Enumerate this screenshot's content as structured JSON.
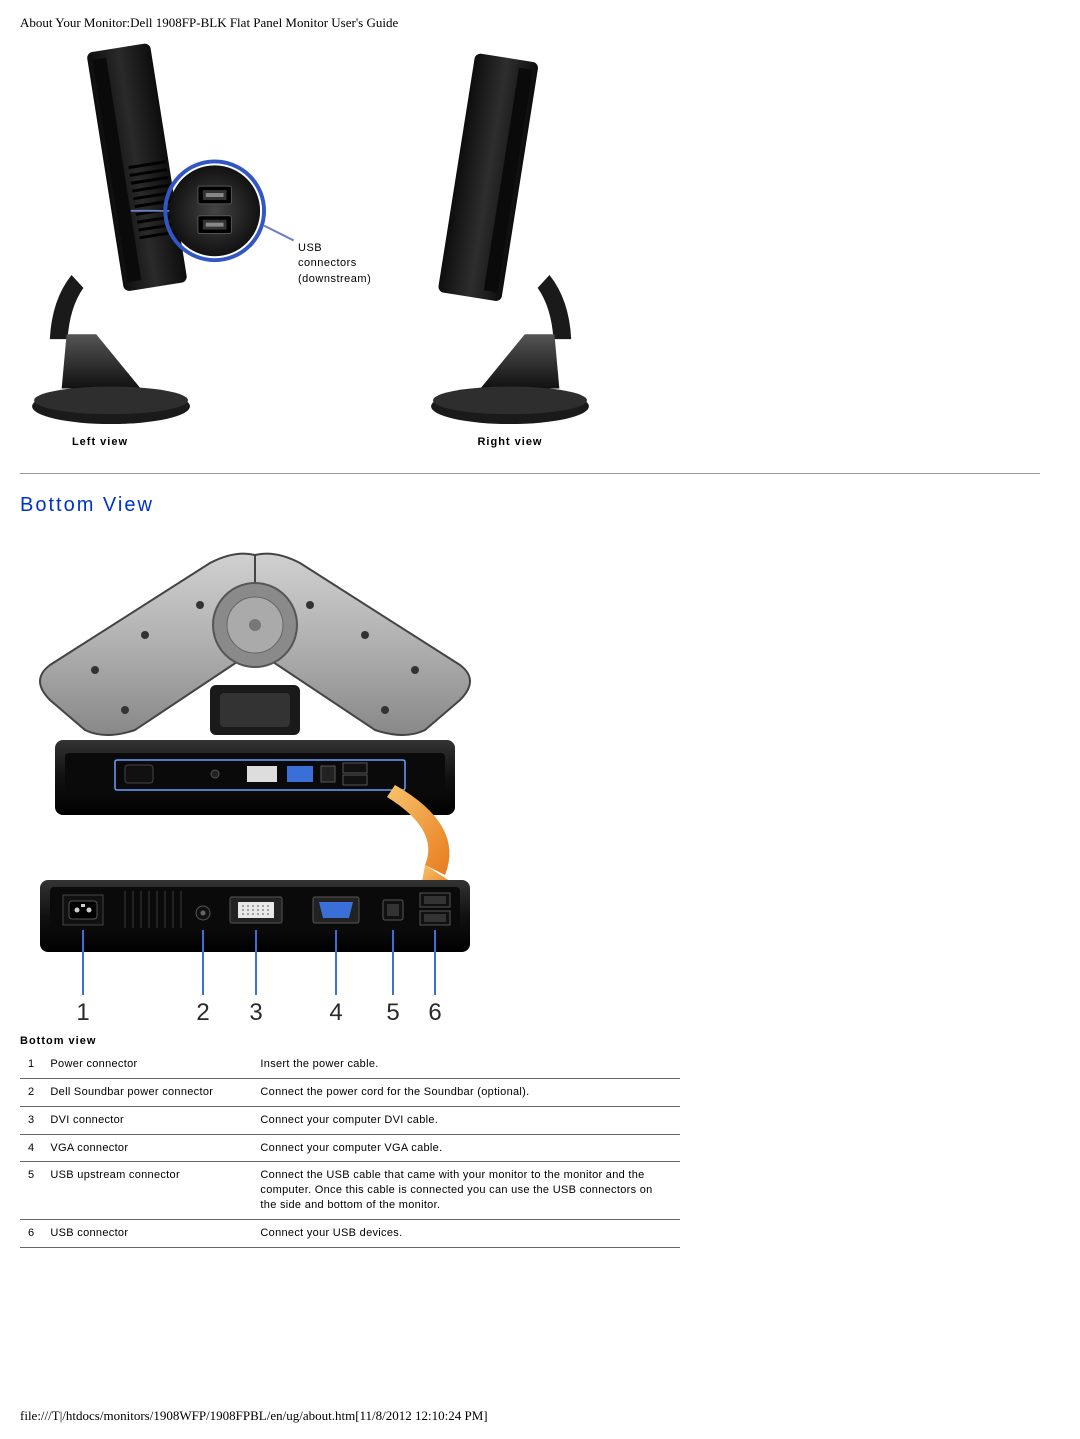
{
  "header": "About Your Monitor:Dell 1908FP-BLK Flat Panel Monitor User's Guide",
  "side_views": {
    "usb_label": "USB\nconnectors\n(downstream)",
    "left_caption": "Left view",
    "right_caption": "Right view"
  },
  "colors": {
    "monitor_body": "#1a1a1a",
    "monitor_mid": "#2e2e2e",
    "monitor_highlight": "#4a4a4a",
    "callout_circle": "#3257c5",
    "callout_line": "#6a7fc8",
    "arrow": "#f39a2b",
    "stand_top": "#b8b8b8",
    "stand_dark": "#5a5a5a",
    "port_blue": "#3a6fd8",
    "port_white": "#e8e8e8",
    "numbers": "#2a2a2a",
    "leader_line": "#3a6fd8"
  },
  "bottom_section": {
    "heading": "Bottom View",
    "caption": "Bottom view",
    "numbers": [
      "1",
      "2",
      "3",
      "4",
      "5",
      "6"
    ],
    "table": [
      {
        "n": "1",
        "name": "Power connector",
        "desc": "Insert the power cable."
      },
      {
        "n": "2",
        "name": "Dell Soundbar power connector",
        "desc": "Connect the power cord for the Soundbar (optional)."
      },
      {
        "n": "3",
        "name": "DVI connector",
        "desc": "Connect your computer DVI cable."
      },
      {
        "n": "4",
        "name": "VGA connector",
        "desc": "Connect your computer VGA cable."
      },
      {
        "n": "5",
        "name": "USB upstream connector",
        "desc": "Connect the USB cable that came with your monitor to the monitor and the computer. Once this cable is connected you can use the USB connectors on the side and bottom of the monitor."
      },
      {
        "n": "6",
        "name": "USB connector",
        "desc": "Connect your USB devices."
      }
    ]
  },
  "footer": "file:///T|/htdocs/monitors/1908WFP/1908FPBL/en/ug/about.htm[11/8/2012 12:10:24 PM]"
}
